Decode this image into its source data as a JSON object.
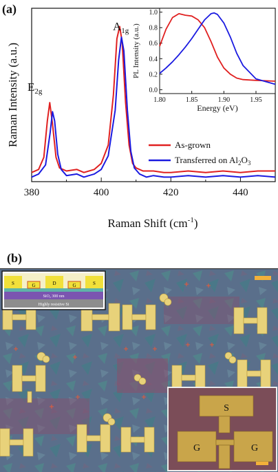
{
  "panel_a": {
    "label": "(a)",
    "chart_data": {
      "type": "line",
      "title": "",
      "xlabel": "Raman Shift (cm",
      "xlabel_sup": "-1",
      "xlabel_close": ")",
      "ylabel": "Raman Intensity (a.u.)",
      "xlim": [
        380,
        450
      ],
      "x_ticks": [
        "380",
        "400",
        "420",
        "440"
      ],
      "annotations": [
        {
          "text": "E",
          "sub": "2g",
          "x": 385
        },
        {
          "text": "A",
          "sub": "1g",
          "x": 405.5
        }
      ],
      "series": [
        {
          "name": "As-grown",
          "color": "#e02020",
          "x": [
            380,
            382,
            383.5,
            384.5,
            385.2,
            386,
            387,
            388,
            390,
            393,
            395,
            398,
            400,
            402,
            403.5,
            404.5,
            405.3,
            406,
            407,
            408,
            409,
            410,
            412,
            415,
            418,
            420,
            425,
            430,
            435,
            440,
            445,
            450
          ],
          "y": [
            0.04,
            0.06,
            0.14,
            0.38,
            0.5,
            0.36,
            0.14,
            0.07,
            0.05,
            0.06,
            0.04,
            0.06,
            0.1,
            0.22,
            0.55,
            0.92,
            1.0,
            0.9,
            0.5,
            0.22,
            0.1,
            0.07,
            0.05,
            0.05,
            0.04,
            0.04,
            0.05,
            0.04,
            0.05,
            0.04,
            0.05,
            0.05
          ]
        },
        {
          "name": "Transferred on Al",
          "name_sub": "2",
          "name_suffix": "O",
          "name_sub2": "3",
          "color": "#1a1ae0",
          "x": [
            380,
            382,
            384,
            385.3,
            386,
            386.6,
            387.5,
            388.5,
            390,
            393,
            395,
            398,
            400,
            402,
            404,
            405,
            405.8,
            406.5,
            407.5,
            408.5,
            409.5,
            411,
            413,
            415,
            418,
            420,
            425,
            430,
            435,
            440,
            445,
            450
          ],
          "y": [
            0.01,
            0.03,
            0.09,
            0.3,
            0.44,
            0.38,
            0.16,
            0.06,
            0.02,
            0.03,
            0.01,
            0.03,
            0.06,
            0.15,
            0.45,
            0.78,
            0.93,
            0.84,
            0.45,
            0.18,
            0.07,
            0.03,
            0.01,
            0.02,
            0.01,
            0.01,
            0.02,
            0.01,
            0.02,
            0.01,
            0.02,
            0.01
          ]
        }
      ],
      "legend_position": "bottom-right",
      "inset": {
        "type": "line",
        "xlabel": "Energy (eV)",
        "ylabel": "PL Intensity (a.u.)",
        "xlim": [
          1.8,
          1.98
        ],
        "ylim": [
          -0.05,
          1.05
        ],
        "x_ticks": [
          "1.80",
          "1.85",
          "1.90",
          "1.95"
        ],
        "y_ticks": [
          "0.0",
          "0.2",
          "0.4",
          "0.6",
          "0.8",
          "1.0"
        ],
        "series": [
          {
            "color": "#e02020",
            "x": [
              1.8,
              1.81,
              1.82,
              1.83,
              1.835,
              1.84,
              1.85,
              1.86,
              1.87,
              1.88,
              1.89,
              1.9,
              1.91,
              1.92,
              1.93,
              1.95,
              1.98
            ],
            "y": [
              0.56,
              0.78,
              0.93,
              0.98,
              0.97,
              0.96,
              0.95,
              0.9,
              0.8,
              0.62,
              0.42,
              0.28,
              0.2,
              0.15,
              0.13,
              0.12,
              0.11
            ]
          },
          {
            "color": "#1a1ae0",
            "x": [
              1.8,
              1.81,
              1.82,
              1.83,
              1.84,
              1.85,
              1.86,
              1.87,
              1.88,
              1.885,
              1.89,
              1.9,
              1.91,
              1.92,
              1.93,
              1.95,
              1.98
            ],
            "y": [
              0.21,
              0.28,
              0.36,
              0.45,
              0.55,
              0.66,
              0.78,
              0.9,
              0.98,
              0.99,
              0.97,
              0.86,
              0.68,
              0.47,
              0.31,
              0.14,
              0.07
            ]
          }
        ]
      }
    }
  },
  "panel_b": {
    "label": "(b)",
    "schematic": {
      "S": "S",
      "D": "D",
      "G": "G",
      "oxide": "SiO₂ 300 nm",
      "substrate": "Highly resistive Si"
    },
    "device_inset": {
      "S": "S",
      "G_left": "G",
      "G_right": "G"
    },
    "colors": {
      "bg": "#556a86",
      "gold": "#e8d27a",
      "inset_gold": "#c9a54a"
    }
  }
}
